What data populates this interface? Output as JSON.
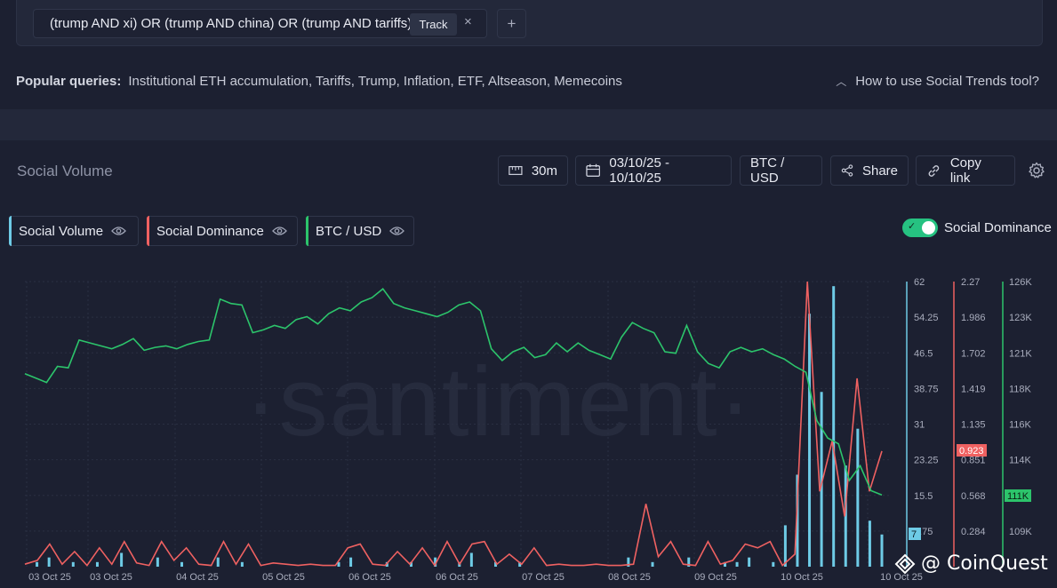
{
  "query": {
    "text": "(trump AND xi) OR (trump AND china) OR (trump AND tariffs)",
    "track_label": "Track",
    "close_label": "×",
    "add_label": "+"
  },
  "popular": {
    "label": "Popular queries:",
    "items": "Institutional ETH accumulation, Tariffs, Trump, Inflation, ETF, Altseason, Memecoins"
  },
  "help": {
    "label": "How to use Social Trends tool?"
  },
  "panel": {
    "title": "Social Volume",
    "interval": "30m",
    "date_range": "03/10/25 - 10/10/25",
    "pair": "BTC / USD",
    "share": "Share",
    "copy_link": "Copy link"
  },
  "series_tabs": [
    {
      "label": "Social Volume",
      "color": "#6ecbe6"
    },
    {
      "label": "Social Dominance",
      "color": "#ef6161"
    },
    {
      "label": "BTC / USD",
      "color": "#2cc46b"
    }
  ],
  "toggle": {
    "label": "Social Dominance",
    "on": true
  },
  "watermark": "·santiment·",
  "brand": "@ CoinQuest",
  "colors": {
    "volume": "#6ecbe6",
    "dominance": "#ef6161",
    "price": "#2cc46b",
    "background": "#1c2031"
  },
  "chart_data": {
    "type": "line",
    "x_labels": [
      "03 Oct 25",
      "03 Oct 25",
      "04 Oct 25",
      "05 Oct 25",
      "06 Oct 25",
      "06 Oct 25",
      "07 Oct 25",
      "08 Oct 25",
      "09 Oct 25",
      "10 Oct 25",
      "10 Oct 25"
    ],
    "axes": {
      "social_volume": {
        "ticks": [
          "62",
          "54.25",
          "46.5",
          "38.75",
          "31",
          "23.25",
          "15.5",
          "7.75"
        ],
        "ylim": [
          0,
          62
        ],
        "current": "7"
      },
      "social_dominance": {
        "ticks": [
          "2.27",
          "1.986",
          "1.702",
          "1.419",
          "1.135",
          "0.851",
          "0.568",
          "0.284"
        ],
        "ylim": [
          0,
          2.27
        ],
        "current": "0.923"
      },
      "btc_usd": {
        "ticks": [
          "126K",
          "123K",
          "121K",
          "118K",
          "116K",
          "114K",
          "111K",
          "109K"
        ],
        "ylim": [
          106500,
          126000
        ],
        "current": "111K"
      }
    },
    "series": [
      {
        "name": "BTC / USD",
        "axis": "btc_usd",
        "values": [
          119700,
          119400,
          119100,
          120200,
          120100,
          122000,
          121800,
          121600,
          121400,
          121700,
          122100,
          121300,
          121500,
          121600,
          121400,
          121700,
          121900,
          122000,
          124800,
          124500,
          124400,
          122500,
          122700,
          123000,
          122800,
          123400,
          123600,
          123100,
          123800,
          124200,
          124000,
          124600,
          124900,
          125500,
          124500,
          124200,
          124000,
          123800,
          123600,
          123900,
          124400,
          124600,
          124000,
          121400,
          120600,
          121200,
          121500,
          120800,
          121000,
          121800,
          121200,
          121800,
          121300,
          121000,
          120700,
          122200,
          123200,
          122800,
          122500,
          121200,
          121100,
          123000,
          121200,
          120400,
          120100,
          121200,
          121500,
          121200,
          121400,
          121000,
          120700,
          120200,
          119800,
          116500,
          115300,
          114900,
          112400,
          113400,
          111700,
          111400
        ]
      },
      {
        "name": "Social Dominance",
        "axis": "social_dominance",
        "values": [
          0.02,
          0.05,
          0.18,
          0.02,
          0.12,
          0.01,
          0.15,
          0.02,
          0.2,
          0.03,
          0.01,
          0.2,
          0.05,
          0.15,
          0.02,
          0.01,
          0.2,
          0.02,
          0.18,
          0.01,
          0.03,
          0.02,
          0.01,
          0.02,
          0.01,
          0.01,
          0.15,
          0.18,
          0.02,
          0.01,
          0.12,
          0.02,
          0.15,
          0.01,
          0.2,
          0.02,
          0.18,
          0.2,
          0.02,
          0.1,
          0.02,
          0.15,
          0.01,
          0.02,
          0.01,
          0.01,
          0.02,
          0.01,
          0.01,
          0.02,
          0.5,
          0.08,
          0.2,
          0.02,
          0.01,
          0.2,
          0.02,
          0.05,
          0.18,
          0.15,
          0.2,
          0.01,
          0.1,
          2.27,
          0.6,
          1.0,
          0.4,
          1.5,
          0.6,
          0.92
        ]
      },
      {
        "name": "Social Volume",
        "axis": "social_volume",
        "values": [
          0,
          1,
          2,
          0,
          1,
          0,
          1,
          0,
          3,
          0,
          0,
          2,
          0,
          1,
          0,
          0,
          2,
          0,
          1,
          0,
          0,
          0,
          0,
          0,
          0,
          0,
          1,
          2,
          0,
          0,
          1,
          0,
          1,
          0,
          2,
          0,
          1,
          3,
          0,
          1,
          0,
          1,
          0,
          0,
          0,
          0,
          0,
          0,
          0,
          0,
          2,
          0,
          1,
          0,
          0,
          2,
          0,
          0,
          1,
          1,
          2,
          0,
          1,
          9,
          20,
          55,
          38,
          61,
          22,
          30,
          10,
          7
        ]
      }
    ],
    "grid": true
  }
}
